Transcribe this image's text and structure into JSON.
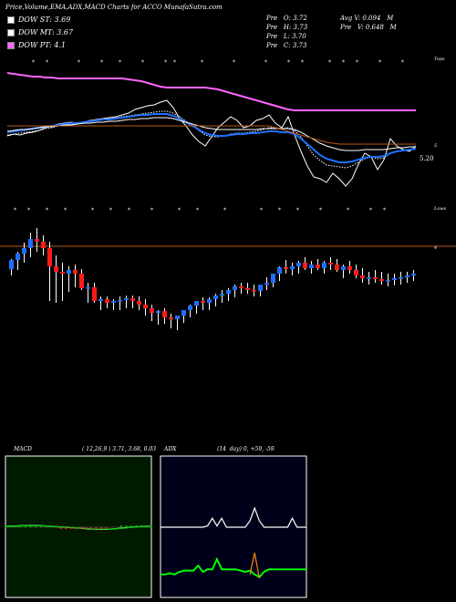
{
  "header": {
    "title": "Price,Volume,EMA,ADX,MACD Charts for ACCO MunafaSutra.com",
    "prev_open": "Pre   O: 3.72",
    "prev_high": "Pre   H: 3.73",
    "prev_low": "Pre   L: 3.70",
    "prev_close": "Pre   C: 3.73",
    "avg_volume": "Avg V: 0.094   M",
    "prev_volume": "Pre   V: 0.648   M"
  },
  "legend": [
    {
      "label": "DOW ST: 3.69",
      "color": "#ffffff"
    },
    {
      "label": "DOW MT: 3.67",
      "color": "#ffffff"
    },
    {
      "label": "DOW PT: 4.1",
      "color": "#ff66ff"
    }
  ],
  "chart_data": [
    {
      "name": "ema-panel",
      "type": "line",
      "axis_labels": [
        "Tops",
        "5",
        "5.20"
      ],
      "x": [
        1,
        2,
        3,
        4,
        5,
        6,
        7,
        8,
        9,
        10,
        11,
        12,
        13,
        14,
        15,
        16,
        17,
        18,
        19,
        20,
        21,
        22,
        23,
        24,
        25,
        26,
        27,
        28,
        29,
        30,
        31,
        32,
        33,
        34,
        35,
        36,
        37,
        38,
        39,
        40,
        41,
        42,
        43,
        44,
        45,
        46,
        47,
        48,
        49,
        50,
        51,
        52,
        53,
        54,
        55,
        56,
        57,
        58,
        59,
        60,
        61,
        62,
        63,
        64,
        65
      ],
      "series": [
        {
          "color": "#ffffff",
          "style": "solid",
          "values": [
            149,
            147,
            148,
            146,
            145,
            143,
            140,
            138,
            136,
            135,
            134,
            135,
            134,
            132,
            131,
            130,
            129,
            128,
            126,
            124,
            120,
            118,
            116,
            115,
            112,
            110,
            118,
            130,
            138,
            148,
            155,
            160,
            150,
            140,
            134,
            128,
            132,
            140,
            138,
            132,
            130,
            126,
            135,
            140,
            128,
            148,
            166,
            182,
            194,
            196,
            200,
            190,
            196,
            204,
            196,
            180,
            168,
            172,
            186,
            175,
            152,
            160,
            164,
            166,
            160
          ]
        },
        {
          "color": "#ffffff",
          "style": "dotted",
          "values": [
            148,
            147,
            146,
            145,
            144,
            143,
            141,
            140,
            138,
            137,
            136,
            135,
            134,
            133,
            132,
            131,
            130,
            129,
            128,
            127,
            126,
            125,
            124,
            123,
            122,
            122,
            124,
            128,
            133,
            138,
            143,
            148,
            150,
            150,
            149,
            147,
            146,
            146,
            145,
            144,
            142,
            140,
            140,
            141,
            140,
            143,
            150,
            160,
            170,
            176,
            181,
            182,
            183,
            184,
            182,
            178,
            174,
            172,
            174,
            173,
            168,
            166,
            165,
            164,
            162
          ]
        },
        {
          "color": "#1e6fff",
          "style": "solid",
          "width": 2,
          "values": [
            145,
            144,
            143,
            142,
            141,
            140,
            139,
            138,
            137,
            136,
            135,
            135,
            134,
            133,
            132,
            131,
            131,
            130,
            129,
            128,
            127,
            126,
            126,
            125,
            125,
            125,
            127,
            130,
            134,
            138,
            142,
            146,
            148,
            149,
            149,
            148,
            147,
            147,
            146,
            146,
            145,
            144,
            144,
            145,
            145,
            147,
            152,
            158,
            164,
            170,
            174,
            176,
            178,
            178,
            177,
            175,
            173,
            172,
            172,
            171,
            168,
            166,
            165,
            164,
            163
          ]
        },
        {
          "color": "#ffffff",
          "style": "solid",
          "values": [
            144,
            143,
            142,
            142,
            141,
            140,
            139,
            139,
            138,
            137,
            137,
            136,
            135,
            135,
            134,
            134,
            133,
            133,
            132,
            131,
            131,
            130,
            130,
            129,
            129,
            129,
            130,
            132,
            134,
            136,
            138,
            140,
            141,
            142,
            142,
            142,
            142,
            142,
            142,
            142,
            141,
            141,
            141,
            141,
            141,
            142,
            145,
            149,
            153,
            157,
            160,
            162,
            164,
            165,
            165,
            165,
            164,
            164,
            164,
            164,
            163,
            162,
            162,
            161,
            161
          ]
        },
        {
          "color": "#ff66ff",
          "style": "solid",
          "width": 2,
          "values": [
            80,
            81,
            82,
            83,
            84,
            84,
            85,
            85,
            86,
            86,
            86,
            86,
            86,
            86,
            86,
            86,
            86,
            86,
            86,
            87,
            88,
            89,
            91,
            93,
            95,
            96,
            96,
            96,
            96,
            96,
            96,
            96,
            97,
            98,
            100,
            102,
            104,
            106,
            108,
            110,
            112,
            114,
            116,
            118,
            120,
            121,
            121,
            121,
            121,
            121,
            121,
            121,
            121,
            121,
            121,
            121,
            121,
            121,
            121,
            121,
            121,
            121,
            121,
            121,
            121
          ]
        },
        {
          "color": "#b85a14",
          "style": "solid",
          "values": [
            138,
            138,
            138,
            138,
            138,
            138,
            138,
            138,
            138,
            138,
            138,
            138,
            138,
            138,
            138,
            138,
            138,
            138,
            138,
            138,
            138,
            138,
            138,
            138,
            138,
            138,
            138,
            138,
            138,
            138,
            138,
            138,
            138,
            138,
            138,
            138,
            138,
            138,
            138,
            138,
            138,
            138,
            140,
            142,
            144,
            146,
            148,
            150,
            152,
            154,
            156,
            157,
            158,
            158,
            158,
            158,
            158,
            158,
            158,
            158,
            158,
            158,
            158,
            158,
            158
          ]
        }
      ]
    },
    {
      "name": "price-panel",
      "type": "candlestick",
      "axis_labels": [
        "Lows",
        "4"
      ],
      "x": [
        1,
        2,
        3,
        4,
        5,
        6,
        7,
        8,
        9,
        10,
        11,
        12,
        13,
        14,
        15,
        16,
        17,
        18,
        19,
        20,
        21,
        22,
        23,
        24,
        25,
        26,
        27,
        28,
        29,
        30,
        31,
        32,
        33,
        34,
        35,
        36,
        37,
        38,
        39,
        40,
        41,
        42,
        43,
        44,
        45,
        46,
        47,
        48,
        49,
        50,
        51,
        52,
        53,
        54,
        55,
        56,
        57,
        58,
        59,
        60,
        61,
        62,
        63,
        64
      ],
      "series": [
        {
          "name": "open",
          "values": [
            295,
            285,
            278,
            272,
            262,
            265,
            272,
            292,
            298,
            300,
            296,
            300,
            316,
            315,
            330,
            328,
            332,
            330,
            329,
            327,
            330,
            334,
            338,
            343,
            341,
            348,
            350,
            346,
            340,
            335,
            330,
            332,
            328,
            324,
            322,
            318,
            314,
            316,
            318,
            319,
            312,
            310,
            300,
            293,
            295,
            292,
            288,
            294,
            290,
            294,
            288,
            290,
            296,
            292,
            296,
            302,
            305,
            304,
            306,
            308,
            307,
            305,
            304,
            302
          ]
        },
        {
          "name": "high",
          "values": [
            284,
            276,
            266,
            255,
            250,
            258,
            265,
            280,
            288,
            292,
            290,
            295,
            310,
            310,
            325,
            325,
            328,
            325,
            324,
            324,
            325,
            328,
            334,
            340,
            338,
            344,
            346,
            340,
            334,
            330,
            326,
            326,
            322,
            318,
            316,
            312,
            310,
            310,
            312,
            312,
            304,
            300,
            292,
            285,
            288,
            286,
            282,
            286,
            284,
            286,
            282,
            284,
            290,
            286,
            290,
            294,
            298,
            296,
            298,
            300,
            300,
            298,
            298,
            296
          ]
        },
        {
          "name": "low",
          "values": [
            302,
            296,
            288,
            282,
            276,
            280,
            330,
            332,
            330,
            320,
            315,
            318,
            332,
            332,
            340,
            338,
            340,
            340,
            338,
            338,
            340,
            346,
            352,
            356,
            355,
            360,
            362,
            354,
            348,
            344,
            340,
            340,
            336,
            332,
            330,
            326,
            322,
            322,
            325,
            325,
            318,
            315,
            308,
            300,
            302,
            300,
            296,
            300,
            296,
            300,
            296,
            298,
            305,
            300,
            305,
            310,
            312,
            310,
            312,
            314,
            313,
            312,
            310,
            308
          ]
        },
        {
          "name": "close",
          "values": [
            285,
            278,
            272,
            262,
            265,
            272,
            292,
            298,
            300,
            296,
            300,
            316,
            315,
            330,
            328,
            332,
            330,
            329,
            327,
            330,
            334,
            338,
            343,
            341,
            348,
            350,
            346,
            340,
            335,
            330,
            332,
            328,
            324,
            322,
            318,
            314,
            316,
            318,
            319,
            312,
            310,
            300,
            293,
            295,
            292,
            288,
            294,
            290,
            294,
            288,
            290,
            296,
            292,
            296,
            302,
            305,
            304,
            306,
            308,
            307,
            305,
            304,
            302,
            300
          ]
        }
      ]
    },
    {
      "name": "macd-panel",
      "type": "line",
      "series": [
        {
          "color": "#ffffff",
          "values": [
            0.5,
            0.6,
            0.7,
            0.8,
            0.9,
            1.0,
            1.0,
            0.9,
            0.7,
            0.5,
            0.3,
            0.1,
            0.0,
            -0.2,
            -0.4,
            -0.6,
            -0.8,
            -1.0,
            -1.1,
            -1.2,
            -1.2,
            -1.0,
            -0.8,
            -0.5,
            -0.3,
            0.0,
            0.2,
            0.4,
            0.5,
            0.6
          ]
        },
        {
          "color": "#00cc00",
          "values": [
            0.4,
            0.5,
            0.6,
            0.7,
            0.8,
            0.9,
            0.9,
            0.8,
            0.7,
            0.5,
            0.3,
            0.2,
            0.1,
            -0.1,
            -0.3,
            -0.5,
            -0.7,
            -0.9,
            -1.0,
            -1.1,
            -1.1,
            -1.0,
            -0.8,
            -0.6,
            -0.4,
            -0.1,
            0.1,
            0.3,
            0.4,
            0.5
          ]
        }
      ]
    },
    {
      "name": "adx-panel",
      "type": "line",
      "series": [
        {
          "color": "#ffffff",
          "values": [
            55,
            55,
            55,
            55,
            55,
            55,
            55,
            55,
            55,
            55,
            56,
            62,
            56,
            62,
            55,
            55,
            55,
            55,
            55,
            60,
            70,
            60,
            55,
            55,
            55,
            55,
            55,
            55,
            62,
            55,
            55,
            55
          ]
        },
        {
          "color": "#00ff00",
          "values": [
            18,
            18,
            19,
            18,
            20,
            21,
            21,
            21,
            25,
            20,
            22,
            22,
            30,
            22,
            22,
            22,
            22,
            21,
            20,
            21,
            18,
            16,
            20,
            22,
            22,
            22,
            22,
            22,
            22,
            22,
            22,
            22
          ]
        },
        {
          "color": "#ff8800",
          "values": [
            null,
            null,
            null,
            null,
            null,
            null,
            null,
            null,
            null,
            null,
            null,
            null,
            null,
            null,
            null,
            null,
            null,
            null,
            null,
            18,
            35,
            15,
            null,
            null,
            null,
            null,
            null,
            null,
            null,
            null,
            null,
            null
          ]
        }
      ]
    }
  ],
  "macd_panel": {
    "label": "MACD",
    "params": "( 12,26,9 ) 3.71, 3.68, 0.03"
  },
  "adx_panel": {
    "label": "ADX",
    "params": "(14  day) 0, +59, -59"
  }
}
